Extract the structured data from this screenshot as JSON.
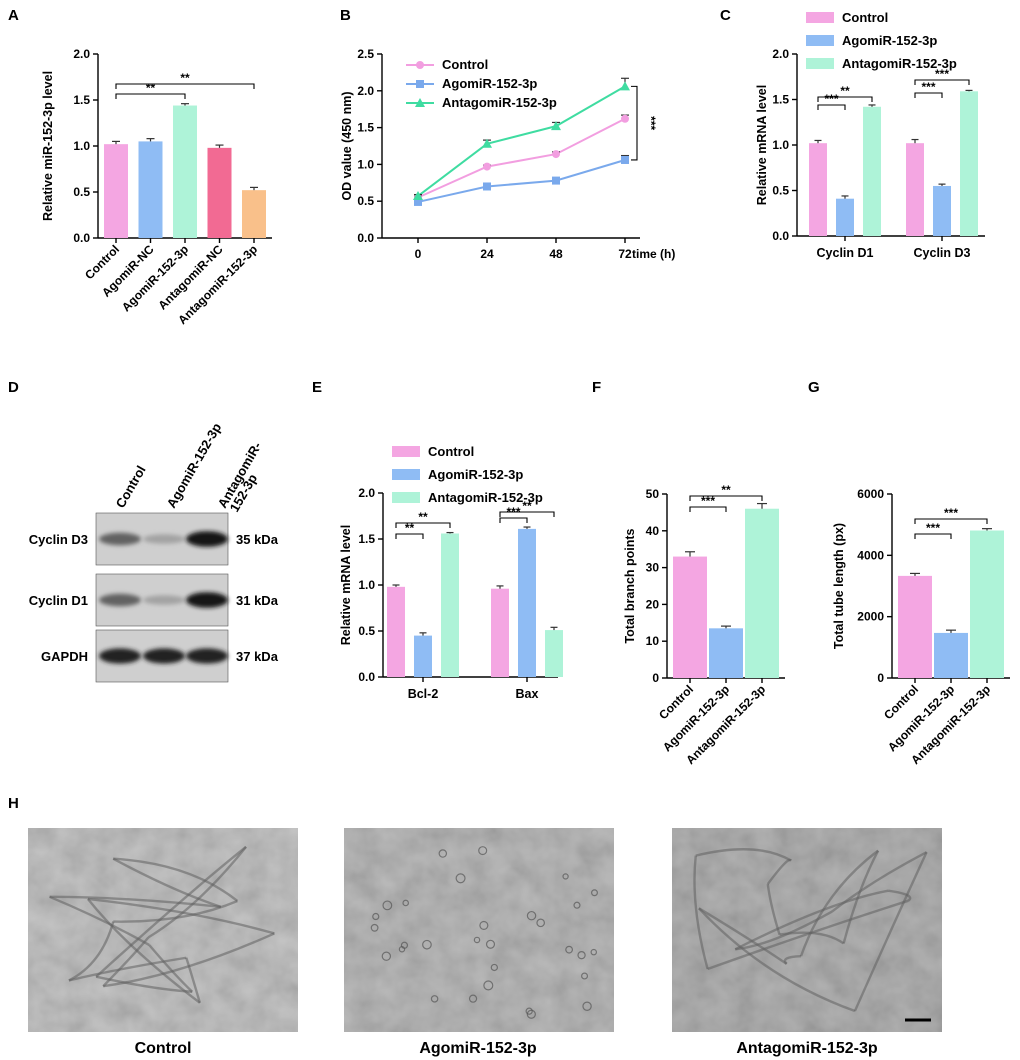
{
  "colors": {
    "control": "#f4a6e2",
    "agomir": "#8fbcf4",
    "antagomir": "#aef3d8",
    "antagomir_nc": "#f26a93",
    "antagomir_152_panelA": "#f9c08a",
    "line_control": "#f29ee0",
    "line_agomir": "#7aa9ec",
    "line_antagomir": "#3fdca1"
  },
  "panels": {
    "A": "A",
    "B": "B",
    "C": "C",
    "D": "D",
    "E": "E",
    "F": "F",
    "G": "G",
    "H": "H"
  },
  "blot": {
    "lanes": [
      "Control",
      "AgomiR-152-3p",
      "AntagomiR-152-3p"
    ],
    "lane_label_lines": [
      [
        "Control"
      ],
      [
        "AgomiR-152-3p"
      ],
      [
        "AntagomiR-",
        "152-3p"
      ]
    ],
    "rows": [
      {
        "name": "Cyclin D3",
        "size": "35 kDa",
        "intensity": [
          0.55,
          0.2,
          0.95
        ]
      },
      {
        "name": "Cyclin D1",
        "size": "31 kDa",
        "intensity": [
          0.55,
          0.2,
          0.95
        ]
      },
      {
        "name": "GAPDH",
        "size": "37 kDa",
        "intensity": [
          0.9,
          0.9,
          0.9
        ]
      }
    ]
  },
  "micrographs": {
    "captions": [
      "Control",
      "AgomiR-152-3p",
      "AntagomiR-152-3p"
    ]
  },
  "chart_data": [
    {
      "panel": "A",
      "type": "bar",
      "categories": [
        "Control",
        "AgomiR-NC",
        "AgomiR-152-3p",
        "AntagomiR-NC",
        "AntagomiR-152-3p"
      ],
      "values": [
        1.02,
        1.05,
        1.44,
        0.98,
        0.52
      ],
      "errors": [
        0.03,
        0.03,
        0.02,
        0.03,
        0.03
      ],
      "ylabel": "Relative miR-152-3p level",
      "ylim": [
        0,
        2.0
      ],
      "yticks": [
        "0.0",
        "0.5",
        "1.0",
        "1.5",
        "2.0"
      ],
      "significance": [
        {
          "from": 0,
          "to": 2,
          "label": "**"
        },
        {
          "from": 0,
          "to": 4,
          "label": "**"
        }
      ]
    },
    {
      "panel": "B",
      "type": "line",
      "x": [
        0,
        24,
        48,
        72
      ],
      "xticks": [
        "0",
        "24",
        "48",
        "72"
      ],
      "xlabel": "time (h)",
      "ylabel": "OD value (450 nm)",
      "ylim": [
        0,
        2.5
      ],
      "yticks": [
        "0.0",
        "0.5",
        "1.0",
        "1.5",
        "2.0",
        "2.5"
      ],
      "series": [
        {
          "name": "Control",
          "values": [
            0.55,
            0.97,
            1.14,
            1.62
          ],
          "errors": [
            0.02,
            0.02,
            0.03,
            0.05
          ]
        },
        {
          "name": "AgomiR-152-3p",
          "values": [
            0.49,
            0.7,
            0.78,
            1.06
          ],
          "errors": [
            0.02,
            0.02,
            0.03,
            0.06
          ]
        },
        {
          "name": "AntagomiR-152-3p",
          "values": [
            0.57,
            1.28,
            1.52,
            2.06
          ],
          "errors": [
            0.02,
            0.05,
            0.05,
            0.11
          ]
        }
      ],
      "significance": [
        {
          "label": "***"
        }
      ]
    },
    {
      "panel": "C",
      "type": "bar",
      "categories": [
        "Cyclin D1",
        "Cyclin D3"
      ],
      "series": [
        {
          "name": "Control",
          "values": [
            1.02,
            1.02
          ],
          "errors": [
            0.03,
            0.04
          ]
        },
        {
          "name": "AgomiR-152-3p",
          "values": [
            0.41,
            0.55
          ],
          "errors": [
            0.03,
            0.02
          ]
        },
        {
          "name": "AntagomiR-152-3p",
          "values": [
            1.42,
            1.59
          ],
          "errors": [
            0.02,
            0.01
          ]
        }
      ],
      "ylabel": "Relative mRNA level",
      "ylim": [
        0,
        2.0
      ],
      "yticks": [
        "0.0",
        "0.5",
        "1.0",
        "1.5",
        "2.0"
      ],
      "significance": [
        {
          "group": 0,
          "to": 1,
          "label": "***"
        },
        {
          "group": 0,
          "to": 2,
          "label": "**"
        },
        {
          "group": 1,
          "to": 1,
          "label": "***"
        },
        {
          "group": 1,
          "to": 2,
          "label": "***"
        }
      ]
    },
    {
      "panel": "E",
      "type": "bar",
      "categories": [
        "Bcl-2",
        "Bax"
      ],
      "series": [
        {
          "name": "Control",
          "values": [
            0.98,
            0.96
          ],
          "errors": [
            0.02,
            0.03
          ]
        },
        {
          "name": "AgomiR-152-3p",
          "values": [
            0.45,
            1.61
          ],
          "errors": [
            0.03,
            0.02
          ]
        },
        {
          "name": "AntagomiR-152-3p",
          "values": [
            1.56,
            0.51
          ],
          "errors": [
            0.01,
            0.03
          ]
        }
      ],
      "ylabel": "Relative mRNA level",
      "ylim": [
        0,
        2.0
      ],
      "yticks": [
        "0.0",
        "0.5",
        "1.0",
        "1.5",
        "2.0"
      ],
      "significance": [
        {
          "group": 0,
          "to": 1,
          "label": "**"
        },
        {
          "group": 0,
          "to": 2,
          "label": "**"
        },
        {
          "group": 1,
          "to": 1,
          "label": "***"
        },
        {
          "group": 1,
          "to": 2,
          "label": "**"
        }
      ]
    },
    {
      "panel": "F",
      "type": "bar",
      "categories": [
        "Control",
        "AgomiR-152-3p",
        "AntagomiR-152-3p"
      ],
      "values": [
        33,
        13.5,
        46
      ],
      "errors": [
        1.3,
        0.6,
        1.4
      ],
      "ylabel": "Total branch points",
      "ylim": [
        0,
        50
      ],
      "yticks": [
        "0",
        "10",
        "20",
        "30",
        "40",
        "50"
      ],
      "significance": [
        {
          "from": 0,
          "to": 1,
          "label": "***"
        },
        {
          "from": 0,
          "to": 2,
          "label": "**"
        }
      ]
    },
    {
      "panel": "G",
      "type": "bar",
      "categories": [
        "Control",
        "AgomiR-152-3p",
        "AntagomiR-152-3p"
      ],
      "values": [
        3330,
        1470,
        4810
      ],
      "errors": [
        80,
        90,
        60
      ],
      "ylabel": "Total tube length (px)",
      "ylim": [
        0,
        6000
      ],
      "yticks": [
        "0",
        "2000",
        "4000",
        "6000"
      ],
      "significance": [
        {
          "from": 0,
          "to": 1,
          "label": "***"
        },
        {
          "from": 0,
          "to": 2,
          "label": "***"
        }
      ]
    }
  ]
}
